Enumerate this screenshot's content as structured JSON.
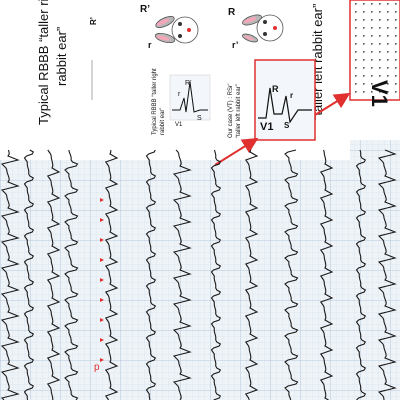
{
  "figure": {
    "label_typical_title_line1": "Typical RBBB “taller right",
    "label_typical_title_line2": "rabbit ear”",
    "label_our_case_title": "“taller left rabbit ear”",
    "label_small_typical_line1": "Typical RBBB “taller right",
    "label_small_typical_line2": "rabbit ear”",
    "label_small_case_line1": "Our case (VT) : RSr’",
    "label_small_case_line2": "“taller left rabbit ear”",
    "wave_R_prime": "R’",
    "wave_r": "r",
    "wave_R": "R",
    "wave_r_prime": "r’",
    "wave_S": "S",
    "lead_V1": "V1",
    "marker_p": "p",
    "colors": {
      "ecg_grid": "#bfd0e0",
      "ecg_background": "#eef3f8",
      "arrow_red": "#e03030",
      "marker_red": "#e03030",
      "bunny_gray": "#b7b7b7",
      "bunny_pink": "#f4a7b9"
    }
  }
}
